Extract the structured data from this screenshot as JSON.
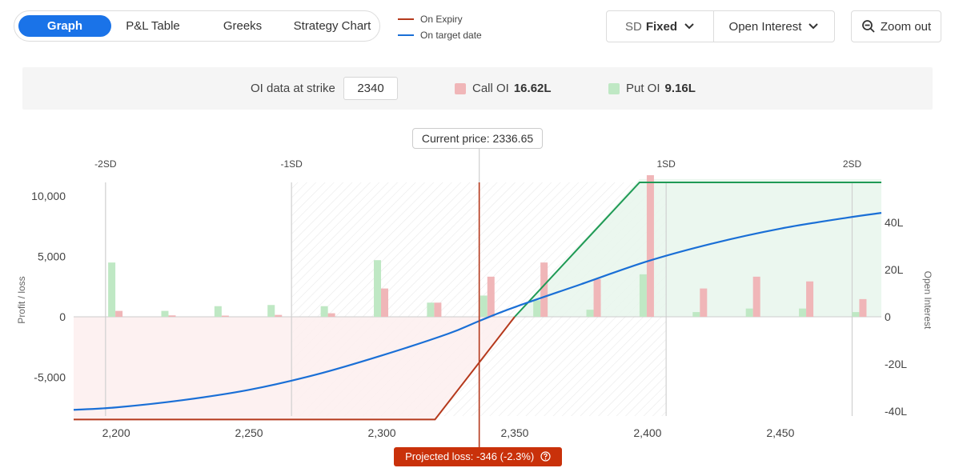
{
  "tabs": [
    {
      "label": "Graph",
      "active": true
    },
    {
      "label": "P&L Table",
      "active": false
    },
    {
      "label": "Greeks",
      "active": false
    },
    {
      "label": "Strategy Chart",
      "active": false
    }
  ],
  "legend": [
    {
      "label": "On Expiry",
      "color": "#b5391c"
    },
    {
      "label": "On target date",
      "color": "#1a6fd6"
    }
  ],
  "controls": {
    "sd_label": "SD",
    "sd_value": "Fixed",
    "oi_label": "Open Interest",
    "zoom_label": "Zoom out"
  },
  "oi_info": {
    "strike_label": "OI data at strike",
    "strike_value": "2340",
    "call_label": "Call OI",
    "call_value": "16.62L",
    "put_label": "Put OI",
    "put_value": "9.16L"
  },
  "current_price_label": "Current price: 2336.65",
  "projected_loss_label": "Projected loss: -346 (-2.3%)",
  "chart_data": {
    "type": "line",
    "xlabel": "",
    "ylabel": "Profit / loss",
    "y2label": "Open Interest",
    "xlim": [
      2184,
      2488
    ],
    "ylim": [
      -8800,
      11500
    ],
    "y2lim": [
      -45,
      60
    ],
    "x_ticks": [
      2200,
      2250,
      2300,
      2350,
      2400,
      2450
    ],
    "x_tick_labels": [
      "2,200",
      "2,250",
      "2,300",
      "2,350",
      "2,400",
      "2,450"
    ],
    "y_ticks": [
      10000,
      5000,
      0,
      -5000
    ],
    "y_tick_labels": [
      "10,000",
      "5,000",
      "0",
      "-5,000"
    ],
    "y2_ticks": [
      40,
      20,
      0,
      -20,
      -40
    ],
    "y2_tick_labels": [
      "40L",
      "20L",
      "0",
      "-20L",
      "-40L"
    ],
    "current_price": 2336.65,
    "sd_lines": [
      {
        "label": "-2SD",
        "x": 2196
      },
      {
        "label": "-1SD",
        "x": 2266
      },
      {
        "label": "1SD",
        "x": 2407
      },
      {
        "label": "2SD",
        "x": 2477
      }
    ],
    "series": [
      {
        "name": "On Expiry",
        "color": "#b5391c",
        "x": [
          2184,
          2320,
          2350,
          2397,
          2488
        ],
        "y": [
          -8500,
          -8500,
          0,
          11400,
          11400
        ]
      },
      {
        "name": "On target date",
        "color": "#1a6fd6",
        "x": [
          2184,
          2200,
          2225,
          2250,
          2275,
          2300,
          2325,
          2336.65,
          2350,
          2375,
          2400,
          2425,
          2450,
          2475,
          2488
        ],
        "y": [
          -7700,
          -7500,
          -6900,
          -6050,
          -4800,
          -3200,
          -1400,
          -346,
          800,
          2700,
          4600,
          6100,
          7300,
          8200,
          8600
        ]
      }
    ],
    "oi_bars": {
      "strikes": [
        2200,
        2220,
        2240,
        2260,
        2280,
        2300,
        2320,
        2340,
        2360,
        2380,
        2400,
        2420,
        2440,
        2460,
        2480
      ],
      "call_oi": [
        2.5,
        0.6,
        0.5,
        0.8,
        1.5,
        12,
        6,
        17,
        23,
        16,
        60,
        12,
        17,
        15,
        7.5
      ],
      "put_oi": [
        23,
        2.5,
        4.5,
        5,
        4.5,
        24,
        6,
        9,
        7,
        3,
        18,
        2,
        3.5,
        3.5,
        2
      ],
      "call_color": "#f0b6b8",
      "put_color": "#bfe8c4"
    }
  }
}
